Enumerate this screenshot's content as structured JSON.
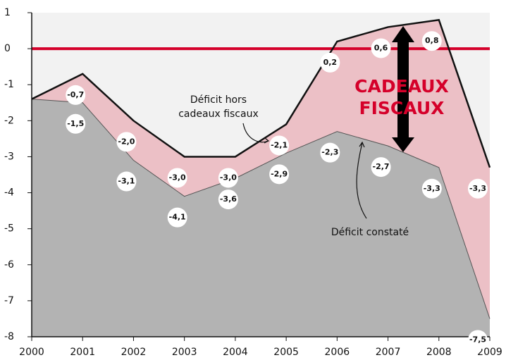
{
  "chart_data": {
    "type": "area",
    "x": [
      2000,
      2001,
      2002,
      2003,
      2004,
      2005,
      2006,
      2007,
      2008,
      2009
    ],
    "series": [
      {
        "name": "Déficit hors cadeaux fiscaux",
        "color": "#ecc0c6",
        "line_color": "#111111",
        "values": [
          -1.4,
          -0.7,
          -2.0,
          -3.0,
          -3.0,
          -2.1,
          0.2,
          0.6,
          0.8,
          -3.3
        ],
        "value_labels": [
          null,
          "-0,7",
          "-2,0",
          "-3,0",
          "-3,0",
          "-2,1",
          "0,2",
          "0,6",
          "0,8",
          "-3,3"
        ]
      },
      {
        "name": "Déficit constaté",
        "color": "#b3b3b3",
        "line_color": "#555555",
        "values": [
          -1.4,
          -1.5,
          -3.1,
          -4.1,
          -3.6,
          -2.9,
          -2.3,
          -2.7,
          -3.3,
          -7.5
        ],
        "value_labels": [
          null,
          "-1,5",
          "-3,1",
          "-4,1",
          "-3,6",
          "-2,9",
          "-2,3",
          "-2,7",
          "-3,3",
          "-7,5"
        ]
      }
    ],
    "annotations": [
      "Déficit hors",
      "cadeaux fiscaux",
      "Déficit constaté",
      "CADEAUX",
      "FISCAUX"
    ],
    "reference_line": {
      "value": 0,
      "color": "#d5002a"
    },
    "background": "#f2f2f2",
    "xlim": [
      2000,
      2009
    ],
    "xticks": [
      2000,
      2001,
      2002,
      2003,
      2004,
      2005,
      2006,
      2007,
      2008,
      2009
    ],
    "ylim": [
      -8,
      1
    ],
    "yticks": [
      -8,
      -7,
      -6,
      -5,
      -4,
      -3,
      -2,
      -1,
      0,
      1
    ]
  }
}
